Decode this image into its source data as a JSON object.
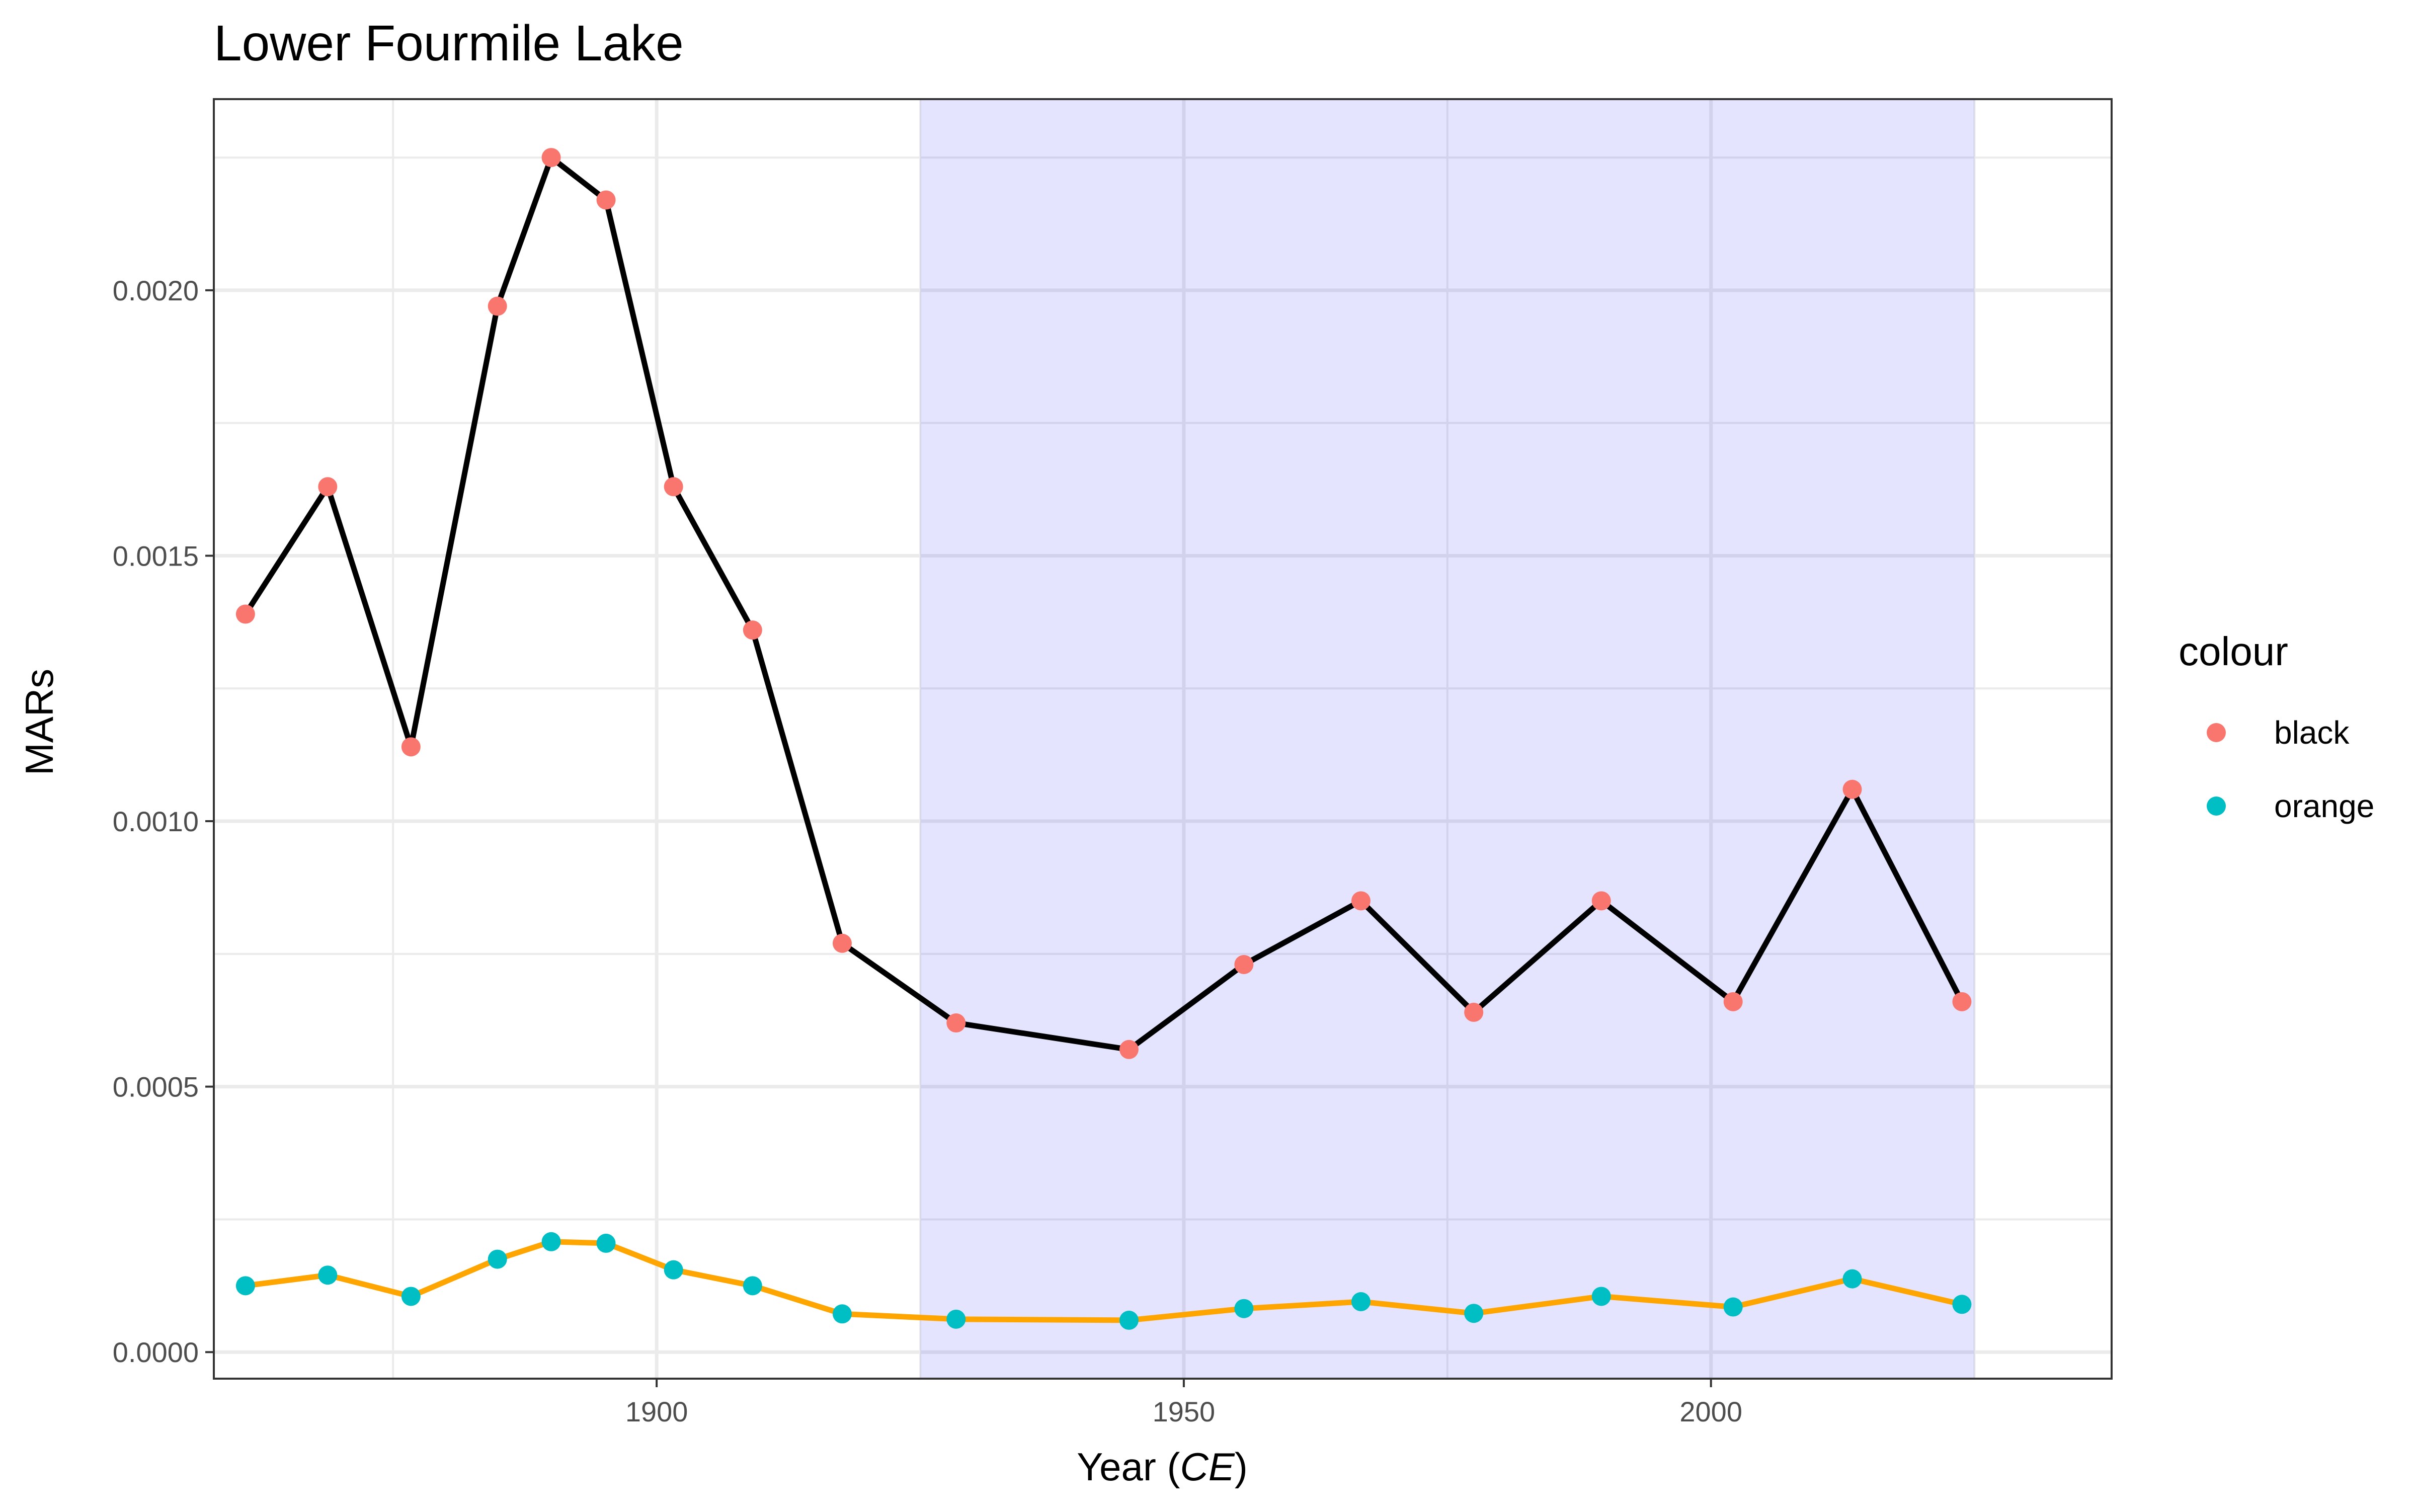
{
  "chart_data": {
    "type": "line",
    "title": "Lower Fourmile Lake",
    "xlabel_prefix": "Year (",
    "xlabel_italic": "CE",
    "xlabel_suffix": ")",
    "ylabel": "MARs",
    "xlim": [
      1858,
      2038
    ],
    "ylim": [
      -5e-05,
      0.00236
    ],
    "x_ticks": [
      1900,
      1950,
      2000
    ],
    "x_tick_labels": [
      "1900",
      "1950",
      "2000"
    ],
    "y_ticks": [
      0.0,
      0.0005,
      0.001,
      0.0015,
      0.002
    ],
    "y_tick_labels": [
      "0.0000",
      "0.0005",
      "0.0010",
      "0.0015",
      "0.0020"
    ],
    "grid": true,
    "shaded_region": {
      "x_start": 1925,
      "x_end": 2025,
      "color": "#e4e4fd"
    },
    "legend": {
      "title": "colour",
      "position": "right",
      "entries": [
        {
          "label": "black",
          "color": "#f8766d"
        },
        {
          "label": "orange",
          "color": "#00bfc4"
        }
      ]
    },
    "series": [
      {
        "name": "black",
        "line_color": "#000000",
        "point_color": "#f8766d",
        "x": [
          1861.0,
          1868.8,
          1876.7,
          1884.9,
          1890.0,
          1895.2,
          1901.6,
          1909.1,
          1917.6,
          1928.4,
          1944.8,
          1955.7,
          1966.8,
          1977.5,
          1989.6,
          2002.1,
          2013.4,
          2023.8
        ],
        "y": [
          0.00139,
          0.00163,
          0.00114,
          0.00197,
          0.00225,
          0.00217,
          0.00163,
          0.00136,
          0.00077,
          0.00062,
          0.00057,
          0.00073,
          0.00085,
          0.00064,
          0.00085,
          0.00066,
          0.00106,
          0.00066
        ]
      },
      {
        "name": "orange",
        "line_color": "#ffa500",
        "point_color": "#00bfc4",
        "x": [
          1861.0,
          1868.8,
          1876.7,
          1884.9,
          1890.0,
          1895.2,
          1901.6,
          1909.1,
          1917.6,
          1928.4,
          1944.8,
          1955.7,
          1966.8,
          1977.5,
          1989.6,
          2002.1,
          2013.4,
          2023.8
        ],
        "y": [
          0.000125,
          0.000145,
          0.000105,
          0.000175,
          0.000208,
          0.000205,
          0.000155,
          0.000125,
          7.2e-05,
          6.2e-05,
          6e-05,
          8.2e-05,
          9.5e-05,
          7.3e-05,
          0.000105,
          8.5e-05,
          0.000138,
          9e-05
        ]
      }
    ]
  }
}
